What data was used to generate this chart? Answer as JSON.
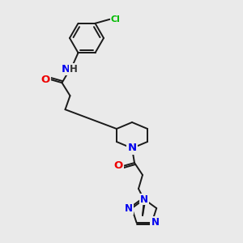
{
  "background_color": "#eaeaea",
  "bond_color": "#1a1a1a",
  "atom_colors": {
    "N": "#0000ee",
    "O": "#ee0000",
    "Cl": "#00bb00",
    "H": "#000000",
    "C": "#1a1a1a"
  },
  "figsize": [
    3.0,
    3.0
  ],
  "dpi": 100
}
